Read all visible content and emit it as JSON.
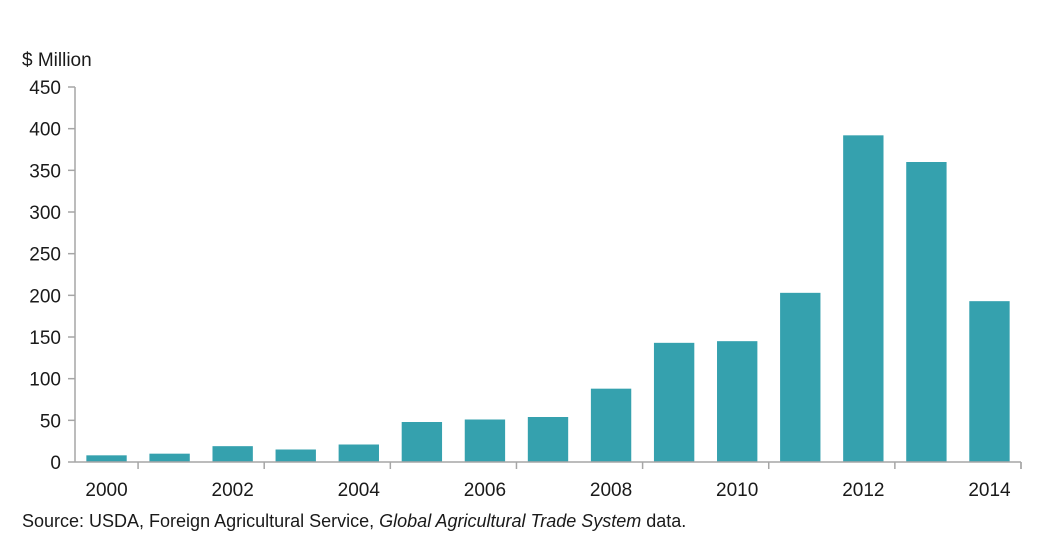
{
  "chart_data": {
    "type": "bar",
    "title": "",
    "ylabel": "$ Million",
    "xlabel": "",
    "ylim": [
      0,
      450
    ],
    "yticks": [
      0,
      50,
      100,
      150,
      200,
      250,
      300,
      350,
      400,
      450
    ],
    "categories": [
      "2000",
      "2001",
      "2002",
      "2003",
      "2004",
      "2005",
      "2006",
      "2007",
      "2008",
      "2009",
      "2010",
      "2011",
      "2012",
      "2013",
      "2014"
    ],
    "xtick_labels": [
      "2000",
      "2002",
      "2004",
      "2006",
      "2008",
      "2010",
      "2012",
      "2014"
    ],
    "values": [
      8,
      10,
      19,
      15,
      21,
      48,
      51,
      54,
      88,
      143,
      145,
      203,
      392,
      360,
      193
    ],
    "grid": false,
    "bar_color": "#35A1AE"
  },
  "source": {
    "prefix": "Source: USDA, Foreign Agricultural Service, ",
    "italic": "Global Agricultural Trade System",
    "suffix": " data."
  }
}
